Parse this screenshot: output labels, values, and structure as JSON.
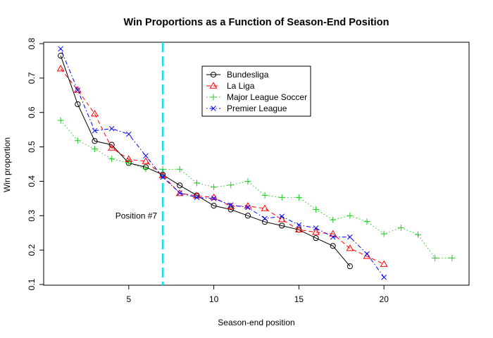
{
  "chart_data": {
    "type": "line",
    "title": "Win Proportions as a Function of Season-End Position",
    "xlabel": "Season-end position",
    "ylabel": "Win proportion",
    "xlim": [
      0,
      25
    ],
    "ylim": [
      0.1,
      0.8
    ],
    "x_ticks": [
      5,
      10,
      15,
      20
    ],
    "y_ticks": [
      0.1,
      0.2,
      0.3,
      0.4,
      0.5,
      0.6,
      0.7,
      0.8
    ],
    "grid": false,
    "legend_position": "top-center",
    "series": [
      {
        "name": "Bundesliga",
        "color": "#000000",
        "marker": "circle",
        "line_style": "solid",
        "x": [
          1,
          2,
          3,
          4,
          5,
          6,
          7,
          8,
          9,
          10,
          11,
          12,
          13,
          14,
          15,
          16,
          17,
          18
        ],
        "y": [
          0.765,
          0.624,
          0.517,
          0.506,
          0.453,
          0.441,
          0.419,
          0.388,
          0.359,
          0.329,
          0.318,
          0.3,
          0.282,
          0.271,
          0.259,
          0.235,
          0.212,
          0.153
        ]
      },
      {
        "name": "La Liga",
        "color": "#ff0000",
        "marker": "triangle",
        "line_style": "dashed",
        "x": [
          1,
          2,
          3,
          4,
          5,
          6,
          7,
          8,
          9,
          10,
          11,
          12,
          13,
          14,
          15,
          16,
          17,
          18,
          19,
          20
        ],
        "y": [
          0.727,
          0.665,
          0.596,
          0.497,
          0.464,
          0.458,
          0.417,
          0.365,
          0.358,
          0.353,
          0.327,
          0.328,
          0.321,
          0.289,
          0.259,
          0.252,
          0.247,
          0.205,
          0.182,
          0.159
        ]
      },
      {
        "name": "Major League Soccer",
        "color": "#22cc22",
        "marker": "plus",
        "line_style": "dotted",
        "x": [
          1,
          2,
          3,
          4,
          5,
          6,
          7,
          8,
          9,
          10,
          11,
          12,
          13,
          14,
          15,
          16,
          17,
          18,
          19,
          20,
          21,
          22,
          23,
          24
        ],
        "y": [
          0.577,
          0.518,
          0.494,
          0.465,
          0.453,
          0.436,
          0.435,
          0.435,
          0.395,
          0.383,
          0.389,
          0.4,
          0.359,
          0.353,
          0.353,
          0.318,
          0.288,
          0.3,
          0.283,
          0.247,
          0.265,
          0.245,
          0.177,
          0.177
        ]
      },
      {
        "name": "Premier League",
        "color": "#0000ff",
        "marker": "x",
        "line_style": "dotdash",
        "x": [
          1,
          2,
          3,
          4,
          5,
          6,
          7,
          8,
          9,
          10,
          11,
          12,
          13,
          14,
          15,
          16,
          17,
          18,
          19,
          20
        ],
        "y": [
          0.785,
          0.665,
          0.547,
          0.553,
          0.537,
          0.474,
          0.412,
          0.366,
          0.353,
          0.35,
          0.331,
          0.324,
          0.292,
          0.298,
          0.273,
          0.264,
          0.238,
          0.238,
          0.189,
          0.121
        ]
      }
    ],
    "reference_line": {
      "x": 7,
      "color": "#00e5ee",
      "style": "dashed",
      "label": "Position #7"
    }
  }
}
